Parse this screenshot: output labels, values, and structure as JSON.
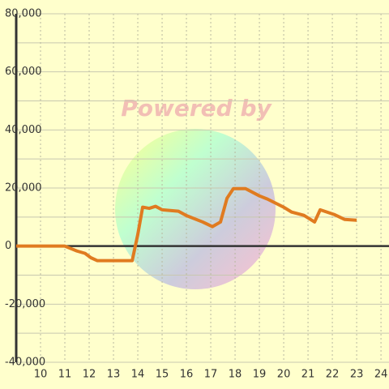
{
  "chart_data": {
    "type": "line",
    "watermark": "Powered by",
    "x": [
      9,
      11,
      11.5,
      11.83,
      12.07,
      12.33,
      13.77,
      14,
      14.2,
      14.47,
      14.73,
      15,
      15.67,
      16,
      16.67,
      17.07,
      17.4,
      17.67,
      17.93,
      18.43,
      19,
      19.33,
      20,
      20.33,
      20.83,
      21.27,
      21.5,
      22.07,
      22.5,
      23
    ],
    "series": [
      {
        "color": "#e07b20",
        "values": [
          0,
          0,
          -1700,
          -2500,
          -4000,
          -5000,
          -5000,
          4000,
          13400,
          13000,
          13700,
          12500,
          12000,
          10500,
          8300,
          6700,
          8300,
          16500,
          19800,
          19800,
          17300,
          16200,
          13400,
          11700,
          10600,
          8300,
          12500,
          10900,
          9200,
          8900
        ]
      }
    ],
    "xlim": [
      9,
      24.33
    ],
    "xticks": [
      10,
      11,
      12,
      13,
      14,
      15,
      16,
      17,
      18,
      19,
      20,
      21,
      22,
      23,
      24
    ],
    "ylim": [
      -40000,
      80000
    ],
    "yticks": [
      {
        "value": 80000,
        "label": "80,000"
      },
      {
        "value": 60000,
        "label": "60,000"
      },
      {
        "value": 40000,
        "label": "40,000"
      },
      {
        "value": 20000,
        "label": "20,000"
      },
      0,
      {
        "value": -20000,
        "label": "-20,000"
      },
      {
        "value": -40000,
        "label": "-40,000"
      }
    ],
    "ygrid": [
      70000,
      50000,
      30000,
      10000,
      -10000,
      -30000
    ],
    "grid": true
  }
}
